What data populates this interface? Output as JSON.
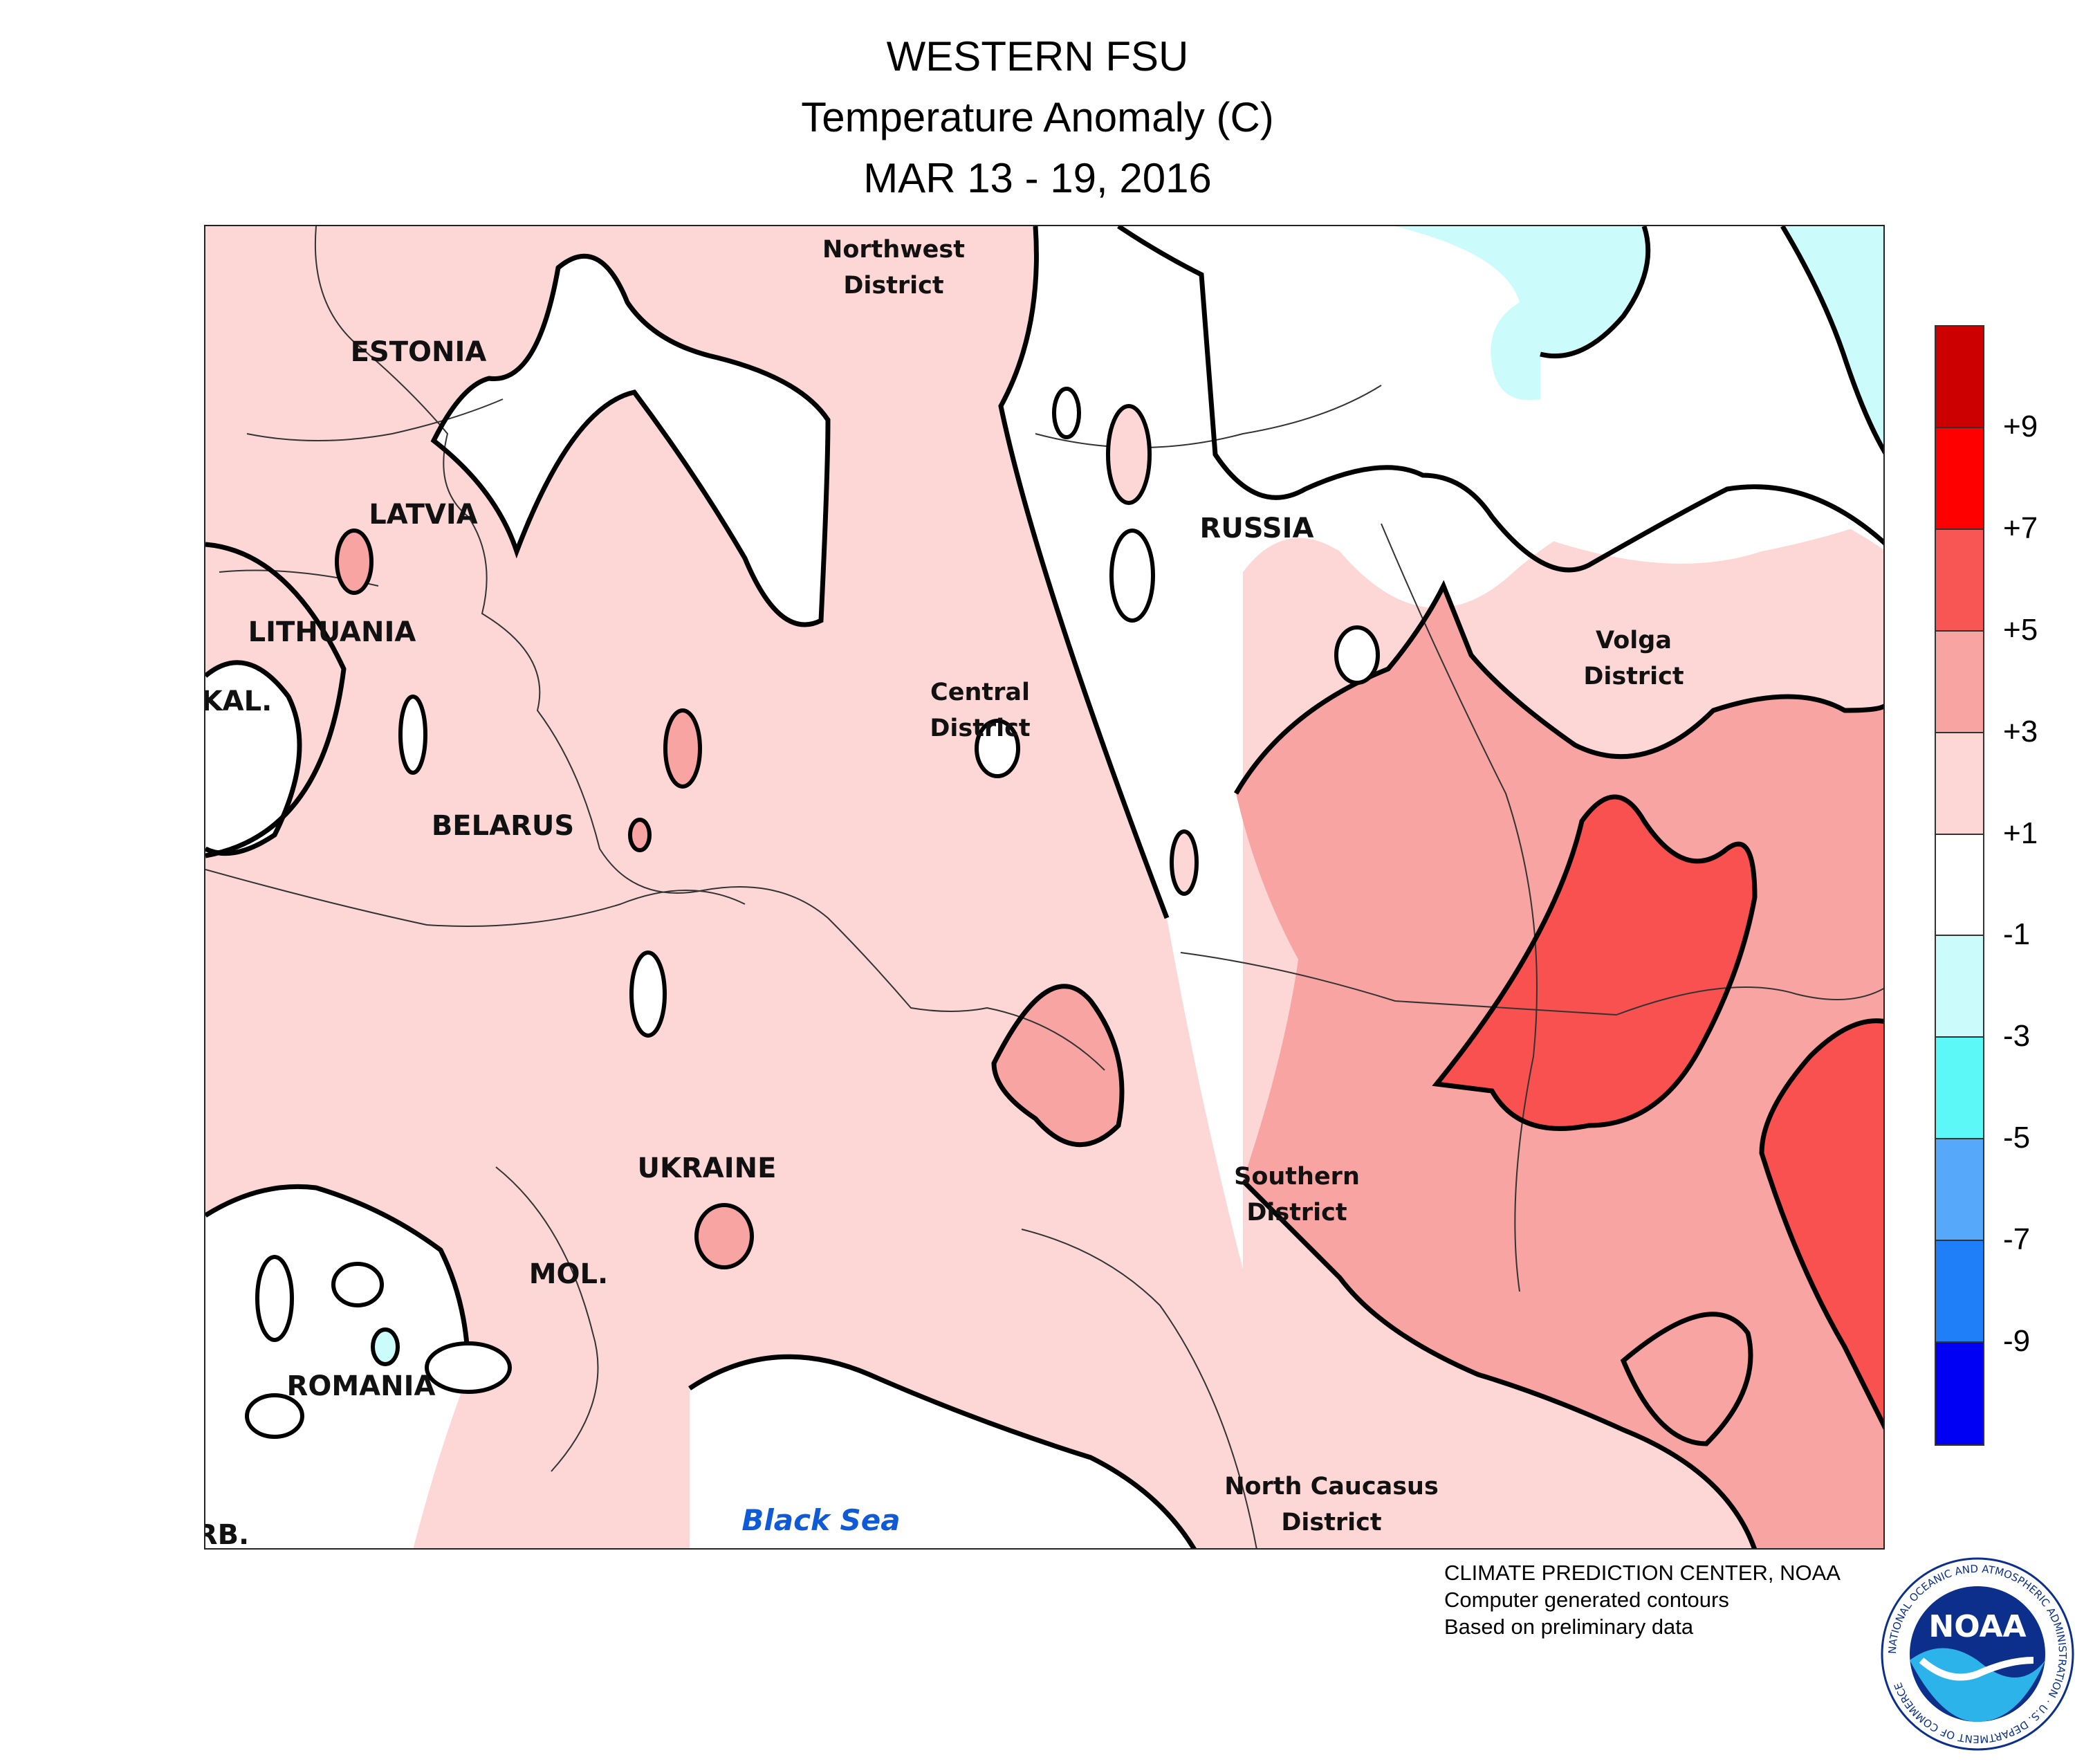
{
  "title": {
    "line1": "WESTERN FSU",
    "line2": "Temperature Anomaly (C)",
    "line3": "MAR 13 - 19, 2016"
  },
  "map": {
    "regions": [
      {
        "text": "ESTONIA",
        "kind": "country"
      },
      {
        "text": "LATVIA",
        "kind": "country"
      },
      {
        "text": "LITHUANIA",
        "kind": "country"
      },
      {
        "text": "KAL.",
        "kind": "country"
      },
      {
        "text": "BELARUS",
        "kind": "country"
      },
      {
        "text": "UKRAINE",
        "kind": "country"
      },
      {
        "text": "MOL.",
        "kind": "country"
      },
      {
        "text": "ROMANIA",
        "kind": "country"
      },
      {
        "text": "RB.",
        "kind": "country"
      },
      {
        "text": "RUSSIA",
        "kind": "country"
      },
      {
        "text": "Northwest",
        "kind": "district"
      },
      {
        "text": "District",
        "kind": "district"
      },
      {
        "text": "Central",
        "kind": "district"
      },
      {
        "text": "District",
        "kind": "district"
      },
      {
        "text": "Volga",
        "kind": "district"
      },
      {
        "text": "District",
        "kind": "district"
      },
      {
        "text": "Southern",
        "kind": "district"
      },
      {
        "text": "District",
        "kind": "district"
      },
      {
        "text": "North Caucasus",
        "kind": "district"
      },
      {
        "text": "District",
        "kind": "district"
      },
      {
        "text": "Black Sea",
        "kind": "water"
      }
    ],
    "colors": {
      "anom_neg1_to_pos1": "#ffffff",
      "anom_1_to_3": "#fcd7d6",
      "anom_3_to_5": "#f8a4a2",
      "anom_5_to_7": "#f9514f",
      "anom_neg3_to_neg1": "#ccfbfb",
      "water_label": "#0f5ad6"
    }
  },
  "legend": {
    "swatches": [
      "#cc0000",
      "#ff0000",
      "#f85555",
      "#f8a4a2",
      "#fcd7d6",
      "#ffffff",
      "#ccfbfb",
      "#5cf7f7",
      "#55a8fa",
      "#1e7ff8",
      "#0000f5"
    ],
    "labels": [
      "+9",
      "+7",
      "+5",
      "+3",
      "+1",
      "-1",
      "-3",
      "-5",
      "-7",
      "-9"
    ]
  },
  "credits": {
    "line1": "CLIMATE PREDICTION CENTER, NOAA",
    "line2": "Computer generated contours",
    "line3": "Based on preliminary data"
  },
  "logo": {
    "text": "NOAA",
    "ring_text": "NATIONAL OCEANIC AND ATMOSPHERIC ADMINISTRATION · U.S. DEPARTMENT OF COMMERCE"
  }
}
